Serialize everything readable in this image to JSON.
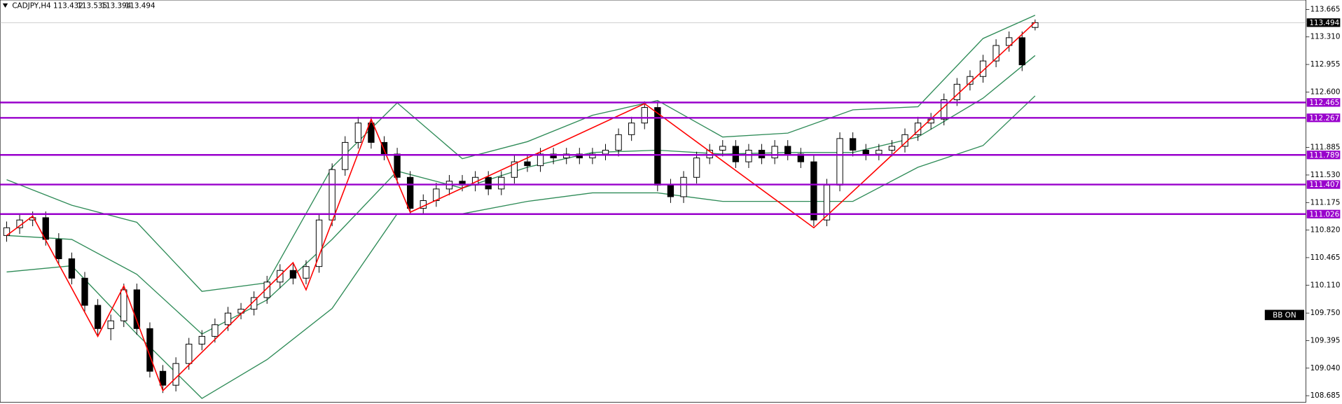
{
  "chart_data": {
    "type": "candlestick",
    "title": "CADJPY,H4",
    "open": [
      110.75,
      110.85,
      110.95,
      110.98,
      110.7,
      110.45,
      110.2,
      109.85,
      109.55,
      109.65,
      110.05,
      109.55,
      109.0,
      108.82,
      109.1,
      109.35,
      109.45,
      109.6,
      109.75,
      109.8,
      109.95,
      110.15,
      110.3,
      110.2,
      110.35,
      110.95,
      111.6,
      111.95,
      112.2,
      111.95,
      111.8,
      111.5,
      111.1,
      111.2,
      111.35,
      111.45,
      111.4,
      111.5,
      111.35,
      111.5,
      111.7,
      111.65,
      111.8,
      111.75,
      111.8,
      111.75,
      111.8,
      111.85,
      112.05,
      112.2,
      112.4,
      111.4,
      111.25,
      111.5,
      111.75,
      111.85,
      111.9,
      111.7,
      111.85,
      111.75,
      111.9,
      111.8,
      111.7,
      110.95,
      111.4,
      112.0,
      111.85,
      111.8,
      111.85,
      111.9,
      112.05,
      112.2,
      112.25,
      112.5,
      112.7,
      112.8,
      113.0,
      113.2,
      113.3,
      113.432
    ],
    "high": [
      110.93,
      111.03,
      111.06,
      111.06,
      110.78,
      110.53,
      110.28,
      109.93,
      109.73,
      110.13,
      110.13,
      109.63,
      109.08,
      109.18,
      109.43,
      109.53,
      109.68,
      109.83,
      109.88,
      110.03,
      110.23,
      110.38,
      110.38,
      110.43,
      111.03,
      111.68,
      112.03,
      112.28,
      112.28,
      112.03,
      111.88,
      111.58,
      111.28,
      111.43,
      111.53,
      111.53,
      111.58,
      111.58,
      111.58,
      111.78,
      111.78,
      111.88,
      111.88,
      111.88,
      111.88,
      111.88,
      111.93,
      112.13,
      112.28,
      112.48,
      112.48,
      111.48,
      111.58,
      111.83,
      111.93,
      111.98,
      111.98,
      111.93,
      111.93,
      111.98,
      111.98,
      111.88,
      111.78,
      111.48,
      112.08,
      112.08,
      111.93,
      111.93,
      111.98,
      112.13,
      112.28,
      112.33,
      112.58,
      112.78,
      112.88,
      113.08,
      113.28,
      113.38,
      113.38,
      113.535
    ],
    "low": [
      110.67,
      110.77,
      110.87,
      110.62,
      110.37,
      110.12,
      109.77,
      109.47,
      109.4,
      109.57,
      109.47,
      108.92,
      108.72,
      108.74,
      109.02,
      109.27,
      109.37,
      109.52,
      109.67,
      109.72,
      109.87,
      110.07,
      110.12,
      110.12,
      110.27,
      110.87,
      111.52,
      111.87,
      111.87,
      111.72,
      111.42,
      111.02,
      111.02,
      111.12,
      111.27,
      111.32,
      111.32,
      111.27,
      111.27,
      111.42,
      111.57,
      111.57,
      111.67,
      111.67,
      111.67,
      111.67,
      111.72,
      111.77,
      111.97,
      112.12,
      111.32,
      111.17,
      111.17,
      111.42,
      111.67,
      111.77,
      111.62,
      111.62,
      111.67,
      111.67,
      111.72,
      111.62,
      110.87,
      110.87,
      111.32,
      111.77,
      111.72,
      111.72,
      111.77,
      111.82,
      111.97,
      112.12,
      112.17,
      112.42,
      112.62,
      112.72,
      112.92,
      113.12,
      112.87,
      113.394
    ],
    "close": [
      110.85,
      110.95,
      110.98,
      110.7,
      110.45,
      110.2,
      109.85,
      109.55,
      109.65,
      110.05,
      109.55,
      109.0,
      108.82,
      109.1,
      109.35,
      109.45,
      109.6,
      109.75,
      109.8,
      109.95,
      110.15,
      110.3,
      110.2,
      110.35,
      110.95,
      111.6,
      111.95,
      112.2,
      111.95,
      111.8,
      111.5,
      111.1,
      111.2,
      111.35,
      111.45,
      111.4,
      111.5,
      111.35,
      111.5,
      111.7,
      111.65,
      111.8,
      111.75,
      111.8,
      111.75,
      111.8,
      111.85,
      112.05,
      112.2,
      112.4,
      111.4,
      111.25,
      111.5,
      111.75,
      111.85,
      111.9,
      111.7,
      111.85,
      111.75,
      111.9,
      111.8,
      111.7,
      110.95,
      111.4,
      112.0,
      111.85,
      111.8,
      111.85,
      111.9,
      112.05,
      112.2,
      112.25,
      112.5,
      112.7,
      112.8,
      113.0,
      113.2,
      113.3,
      112.95,
      113.494
    ],
    "up_color": "#ffffff",
    "down_color": "#000000",
    "xlim": [
      -0.5,
      99.8
    ],
    "ylim": [
      108.6,
      113.786
    ],
    "yticks": [
      113.665,
      {
        "value": 113.31,
        "label": "113.310"
      },
      112.955,
      {
        "value": 112.6,
        "label": "112.600"
      },
      111.885,
      {
        "value": 111.53,
        "label": "111.530"
      },
      111.175,
      {
        "value": 110.82,
        "label": "110.820"
      },
      110.465,
      {
        "value": 110.11,
        "label": "110.110"
      },
      {
        "value": 109.75,
        "label": "109.750"
      },
      109.395,
      {
        "value": 109.04,
        "label": "109.040"
      },
      108.685
    ],
    "levels": [
      112.465,
      112.267,
      111.789,
      111.407,
      111.026
    ],
    "level_color": "#9900cc",
    "bands": {
      "color": "#2e8b57",
      "x": [
        0,
        5,
        10,
        15,
        20,
        25,
        30,
        35,
        40,
        45,
        50,
        55,
        60,
        65,
        70,
        75,
        79
      ],
      "upper": [
        111.47,
        111.14,
        110.92,
        110.03,
        110.14,
        111.63,
        112.46,
        111.74,
        111.96,
        112.3,
        112.49,
        112.02,
        112.07,
        112.37,
        112.41,
        113.29,
        113.59
      ],
      "middle": [
        110.75,
        110.7,
        110.25,
        109.48,
        109.92,
        110.7,
        111.58,
        111.36,
        111.63,
        111.82,
        111.85,
        111.8,
        111.82,
        111.82,
        112.02,
        112.52,
        113.07
      ],
      "lower": [
        110.28,
        110.36,
        109.48,
        108.65,
        109.15,
        109.81,
        111.03,
        111.03,
        111.19,
        111.3,
        111.3,
        111.19,
        111.19,
        111.19,
        111.63,
        111.91,
        112.55
      ]
    },
    "zigzag": {
      "color": "#ff0000",
      "x": [
        0,
        2,
        7,
        9,
        12,
        22,
        23,
        28,
        31,
        49,
        62,
        79
      ],
      "values": [
        110.75,
        111.0,
        109.45,
        110.1,
        108.75,
        110.4,
        110.05,
        112.25,
        111.05,
        112.45,
        110.85,
        113.5
      ]
    },
    "indicator_label": "BB ON"
  }
}
